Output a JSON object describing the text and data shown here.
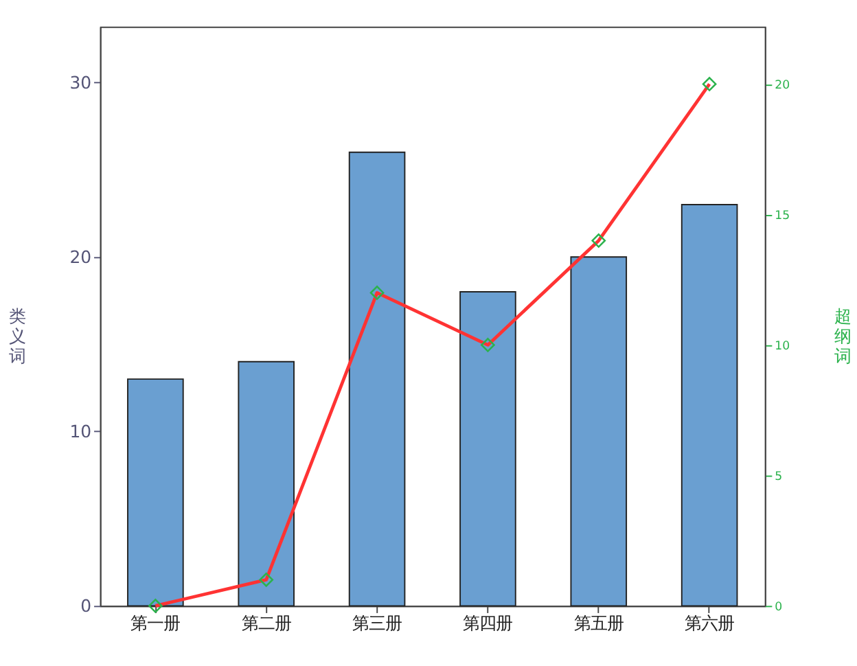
{
  "chart_data": {
    "type": "bar",
    "ylabel": "类义词",
    "y2label": "超纲词",
    "categories": [
      "第一册",
      "第二册",
      "第三册",
      "第四册",
      "第五册",
      "第六册"
    ],
    "series": [
      {
        "color": "#6a9fd1",
        "values": [
          13,
          14,
          26,
          18,
          20,
          23
        ]
      },
      {
        "type": "line",
        "axis": "y2",
        "color": "#ff3333",
        "marker": "diamond",
        "values": [
          0,
          1,
          12,
          10,
          14,
          20
        ]
      }
    ],
    "ylim": [
      0,
      33.2
    ],
    "yticks": [
      0,
      10,
      20,
      30
    ],
    "y2lim": [
      0,
      22.2
    ],
    "y2ticks": [
      0,
      5,
      10,
      15,
      20
    ],
    "grid": false
  }
}
